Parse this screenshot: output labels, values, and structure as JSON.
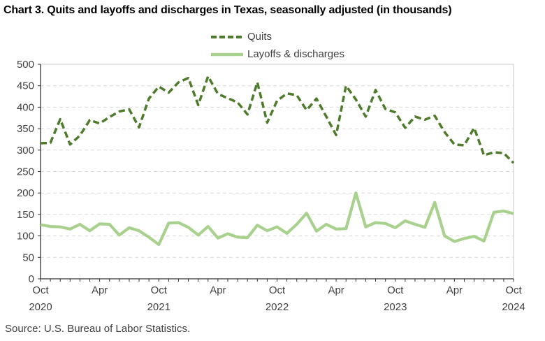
{
  "title": "Chart 3. Quits and layoffs and discharges in Texas, seasonally adjusted (in thousands)",
  "source": "Source: U.S. Bureau of Labor Statistics.",
  "colors": {
    "quits_line": "#4e7b2c",
    "layoffs_line": "#a9d18e",
    "gridline": "#d9d9d9",
    "plot_border": "#d6d6d6",
    "axis": "#333333",
    "tick_text": "#404040",
    "title_text": "#000000"
  },
  "legend": {
    "items": [
      {
        "label": "Quits",
        "color": "#4e7b2c",
        "style": "dashed"
      },
      {
        "label": "Layoffs & discharges",
        "color": "#a9d18e",
        "style": "solid"
      }
    ]
  },
  "chart_data": {
    "type": "line",
    "title": "Chart 3. Quits and layoffs and discharges in Texas, seasonally adjusted (in thousands)",
    "xlabel": "",
    "ylabel": "",
    "ylim": [
      0,
      500
    ],
    "ytick_step": 50,
    "grid": true,
    "legend_position": "top-center",
    "x": [
      "Oct 2020",
      "Nov 2020",
      "Dec 2020",
      "Jan 2021",
      "Feb 2021",
      "Mar 2021",
      "Apr 2021",
      "May 2021",
      "Jun 2021",
      "Jul 2021",
      "Aug 2021",
      "Sep 2021",
      "Oct 2021",
      "Nov 2021",
      "Dec 2021",
      "Jan 2022",
      "Feb 2022",
      "Mar 2022",
      "Apr 2022",
      "May 2022",
      "Jun 2022",
      "Jul 2022",
      "Aug 2022",
      "Sep 2022",
      "Oct 2022",
      "Nov 2022",
      "Dec 2022",
      "Jan 2023",
      "Feb 2023",
      "Mar 2023",
      "Apr 2023",
      "May 2023",
      "Jun 2023",
      "Jul 2023",
      "Aug 2023",
      "Sep 2023",
      "Oct 2023",
      "Nov 2023",
      "Dec 2023",
      "Jan 2024",
      "Feb 2024",
      "Mar 2024",
      "Apr 2024",
      "May 2024",
      "Jun 2024",
      "Jul 2024",
      "Aug 2024",
      "Sep 2024",
      "Oct 2024"
    ],
    "x_tick_labels": [
      {
        "index": 0,
        "month": "Oct",
        "year": "2020"
      },
      {
        "index": 6,
        "month": "Apr"
      },
      {
        "index": 12,
        "month": "Oct",
        "year": "2021"
      },
      {
        "index": 18,
        "month": "Apr"
      },
      {
        "index": 24,
        "month": "Oct",
        "year": "2022"
      },
      {
        "index": 30,
        "month": "Apr"
      },
      {
        "index": 36,
        "month": "Oct",
        "year": "2023"
      },
      {
        "index": 42,
        "month": "Apr"
      },
      {
        "index": 48,
        "month": "Oct",
        "year": "2024"
      }
    ],
    "series": [
      {
        "name": "Quits",
        "color": "#4e7b2c",
        "dash": true,
        "values": [
          316,
          317,
          372,
          313,
          334,
          370,
          362,
          377,
          390,
          395,
          353,
          420,
          448,
          434,
          458,
          468,
          405,
          472,
          431,
          421,
          411,
          383,
          458,
          364,
          415,
          432,
          428,
          393,
          420,
          378,
          335,
          450,
          418,
          378,
          440,
          396,
          388,
          352,
          378,
          371,
          380,
          342,
          313,
          311,
          352,
          288,
          295,
          293,
          270
        ]
      },
      {
        "name": "Layoffs & discharges",
        "color": "#a9d18e",
        "dash": false,
        "values": [
          126,
          122,
          121,
          116,
          127,
          112,
          128,
          127,
          102,
          119,
          112,
          97,
          80,
          130,
          131,
          120,
          102,
          122,
          95,
          105,
          97,
          96,
          125,
          112,
          121,
          106,
          127,
          153,
          111,
          127,
          116,
          117,
          200,
          121,
          131,
          129,
          119,
          135,
          127,
          120,
          178,
          100,
          87,
          94,
          99,
          88,
          155,
          158,
          152
        ]
      }
    ]
  }
}
